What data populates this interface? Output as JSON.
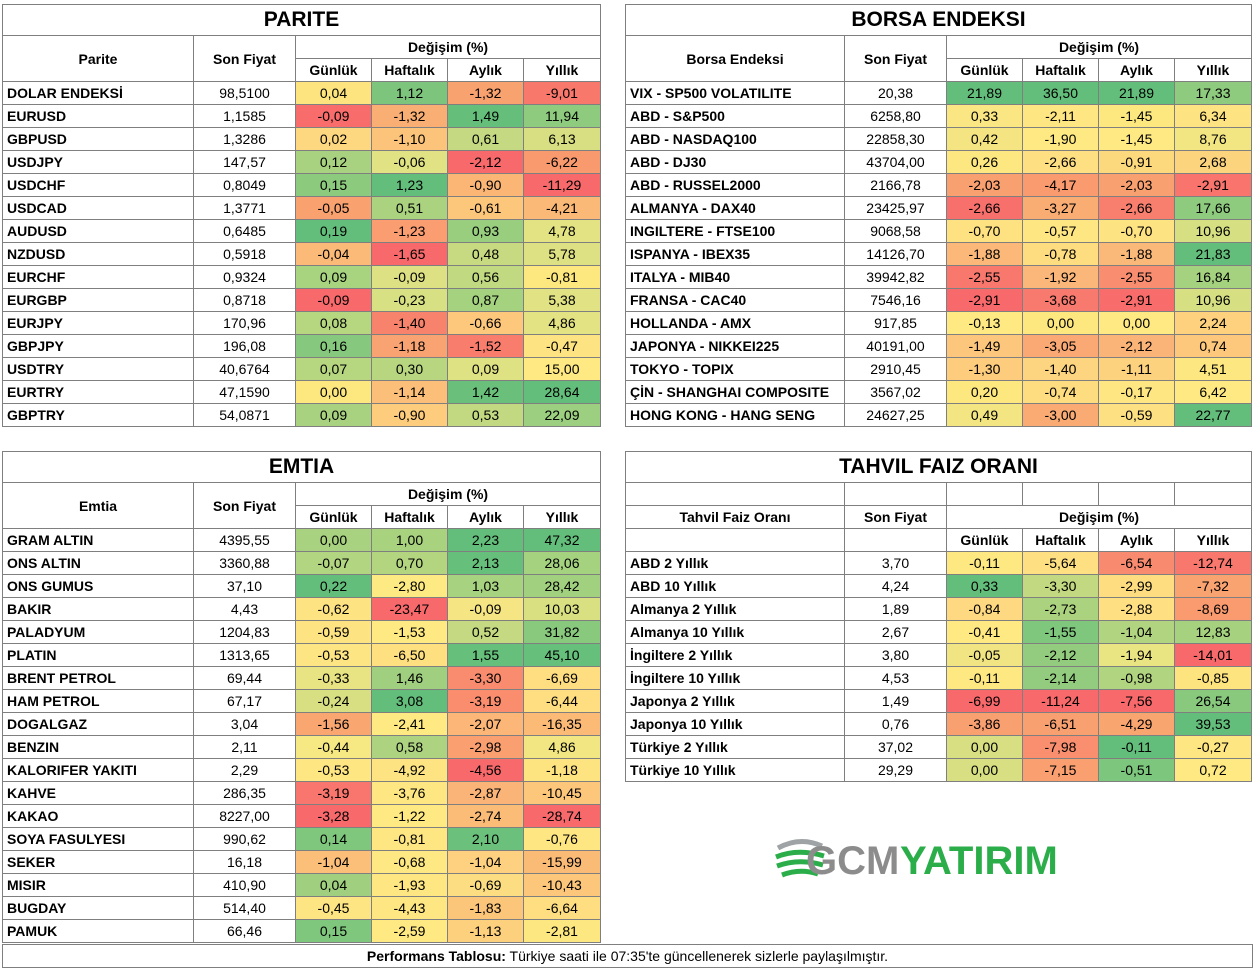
{
  "headers": {
    "son_fiyat": "Son Fiyat",
    "degisim": "Değişim (%)",
    "gunluk": "Günlük",
    "haftalik": "Haftalık",
    "aylik": "Aylık",
    "yillik": "Yıllık"
  },
  "parite": {
    "title": "PARITE",
    "col_label": "Parite",
    "rows": [
      {
        "name": "DOLAR ENDEKSİ",
        "price": "98,5100",
        "d": "0,04",
        "w": "1,12",
        "m": "-1,32",
        "y": "-9,01",
        "c": [
          "#fde47e",
          "#7dc57c",
          "#f8a270",
          "#f8786c"
        ]
      },
      {
        "name": "EURUSD",
        "price": "1,1585",
        "d": "-0,09",
        "w": "-1,32",
        "m": "1,49",
        "y": "11,94",
        "c": [
          "#f86d6b",
          "#f9ae73",
          "#66be7b",
          "#8fcb7e"
        ]
      },
      {
        "name": "GBPUSD",
        "price": "1,3286",
        "d": "0,02",
        "w": "-1,10",
        "m": "0,61",
        "y": "6,13",
        "c": [
          "#fed880",
          "#fbc47a",
          "#c4d981",
          "#d8df82"
        ]
      },
      {
        "name": "USDJPY",
        "price": "147,57",
        "d": "0,12",
        "w": "-0,06",
        "m": "-2,12",
        "y": "-6,22",
        "c": [
          "#a8d27f",
          "#e0e283",
          "#f8696b",
          "#f89a6e"
        ]
      },
      {
        "name": "USDCHF",
        "price": "0,8049",
        "d": "0,15",
        "w": "1,23",
        "m": "-0,90",
        "y": "-11,29",
        "c": [
          "#8ccb7e",
          "#63be7b",
          "#fbb575",
          "#f8696b"
        ]
      },
      {
        "name": "USDCAD",
        "price": "1,3771",
        "d": "-0,05",
        "w": "0,51",
        "m": "-0,61",
        "y": "-4,21",
        "c": [
          "#f9a26f",
          "#aad27f",
          "#fcc67b",
          "#fbb977"
        ]
      },
      {
        "name": "AUDUSD",
        "price": "0,6485",
        "d": "0,19",
        "w": "-1,23",
        "m": "0,93",
        "y": "4,78",
        "c": [
          "#63be7b",
          "#fa9d71",
          "#99ce7f",
          "#e4e383"
        ]
      },
      {
        "name": "NZDUSD",
        "price": "0,5918",
        "d": "-0,04",
        "w": "-1,65",
        "m": "0,48",
        "y": "5,78",
        "c": [
          "#fbba77",
          "#f8696b",
          "#c8da81",
          "#dde183"
        ]
      },
      {
        "name": "EURCHF",
        "price": "0,9324",
        "d": "0,09",
        "w": "-0,09",
        "m": "0,56",
        "y": "-0,81",
        "c": [
          "#a8d37f",
          "#dde183",
          "#c1d981",
          "#fde880"
        ]
      },
      {
        "name": "EURGBP",
        "price": "0,8718",
        "d": "-0,09",
        "w": "-0,23",
        "m": "0,87",
        "y": "5,38",
        "c": [
          "#f8696b",
          "#d7e082",
          "#a4d27f",
          "#e0e283"
        ]
      },
      {
        "name": "EURJPY",
        "price": "170,96",
        "d": "0,08",
        "w": "-1,40",
        "m": "-0,66",
        "y": "4,86",
        "c": [
          "#b6d680",
          "#f8836d",
          "#fdc77c",
          "#e4e383"
        ]
      },
      {
        "name": "GBPJPY",
        "price": "196,08",
        "d": "0,16",
        "w": "-1,18",
        "m": "-1,52",
        "y": "-0,47",
        "c": [
          "#86c97e",
          "#faa372",
          "#f87d6d",
          "#fee382"
        ]
      },
      {
        "name": "USDTRY",
        "price": "40,6764",
        "d": "0,07",
        "w": "0,30",
        "m": "0,09",
        "y": "15,00",
        "c": [
          "#b6d680",
          "#b8d680",
          "#dfe283",
          "#fee983"
        ]
      },
      {
        "name": "EURTRY",
        "price": "47,1590",
        "d": "0,00",
        "w": "-1,14",
        "m": "1,42",
        "y": "28,64",
        "c": [
          "#fde880",
          "#fbbf79",
          "#6ac07b",
          "#63be7b"
        ]
      },
      {
        "name": "GBPTRY",
        "price": "54,0871",
        "d": "0,09",
        "w": "-0,90",
        "m": "0,53",
        "y": "22,09",
        "c": [
          "#a8d27f",
          "#fdcc7d",
          "#c2d981",
          "#9ccf7f"
        ]
      }
    ]
  },
  "borsa": {
    "title": "BORSA ENDEKSI",
    "col_label": "Borsa Endeksi",
    "rows": [
      {
        "name": "VIX  - SP500 VOLATILITE",
        "price": "20,38",
        "d": "21,89",
        "w": "36,50",
        "m": "21,89",
        "y": "17,33",
        "c": [
          "#63be7b",
          "#63be7b",
          "#63be7b",
          "#8fcb7e"
        ]
      },
      {
        "name": "ABD - S&P500",
        "price": "6258,80",
        "d": "0,33",
        "w": "-2,11",
        "m": "-1,45",
        "y": "6,34",
        "c": [
          "#fae683",
          "#fee682",
          "#fde880",
          "#fde382"
        ]
      },
      {
        "name": "ABD - NASDAQ100",
        "price": "22858,30",
        "d": "0,42",
        "w": "-1,90",
        "m": "-1,45",
        "y": "8,76",
        "c": [
          "#f5e582",
          "#fee983",
          "#fee983",
          "#f1e682"
        ]
      },
      {
        "name": "ABD - DJ30",
        "price": "43704,00",
        "d": "0,26",
        "w": "-2,66",
        "m": "-0,91",
        "y": "2,68",
        "c": [
          "#fde780",
          "#fee083",
          "#fdd97e",
          "#fdd47e"
        ]
      },
      {
        "name": "ABD - RUSSEL2000",
        "price": "2166,78",
        "d": "-2,03",
        "w": "-4,17",
        "m": "-2,03",
        "y": "-2,91",
        "c": [
          "#f9a070",
          "#f99a6f",
          "#f9a070",
          "#f8746d"
        ]
      },
      {
        "name": "ALMANYA - DAX40",
        "price": "23425,97",
        "d": "-2,66",
        "w": "-3,27",
        "m": "-2,66",
        "y": "17,66",
        "c": [
          "#f8706c",
          "#f9ad73",
          "#f87f6e",
          "#8fcb7e"
        ]
      },
      {
        "name": "INGILTERE - FTSE100",
        "price": "9068,58",
        "d": "-0,70",
        "w": "-0,57",
        "m": "-0,70",
        "y": "10,96",
        "c": [
          "#fee282",
          "#fee783",
          "#fee382",
          "#d6df82"
        ]
      },
      {
        "name": "ISPANYA - IBEX35",
        "price": "14126,70",
        "d": "-1,88",
        "w": "-0,78",
        "m": "-1,88",
        "y": "21,83",
        "c": [
          "#fbb878",
          "#fedd81",
          "#fbb979",
          "#63be7b"
        ]
      },
      {
        "name": "ITALYA - MIB40",
        "price": "39942,82",
        "d": "-2,55",
        "w": "-1,92",
        "m": "-2,55",
        "y": "16,84",
        "c": [
          "#f8786d",
          "#fbb679",
          "#f88d6f",
          "#a4d27f"
        ]
      },
      {
        "name": "FRANSA - CAC40",
        "price": "7546,16",
        "d": "-2,91",
        "w": "-3,68",
        "m": "-2,91",
        "y": "10,96",
        "c": [
          "#f8696b",
          "#f8796d",
          "#f86d6b",
          "#d6df82"
        ]
      },
      {
        "name": "HOLLANDA - AMX",
        "price": "917,85",
        "d": "-0,13",
        "w": "0,00",
        "m": "0,00",
        "y": "2,24",
        "c": [
          "#fee983",
          "#fde880",
          "#fee983",
          "#fdd17e"
        ]
      },
      {
        "name": "JAPONYA - NIKKEI225",
        "price": "40191,00",
        "d": "-1,49",
        "w": "-3,05",
        "m": "-2,12",
        "y": "0,74",
        "c": [
          "#fcc77c",
          "#faa974",
          "#fbb478",
          "#fdc87c"
        ]
      },
      {
        "name": "TOKYO - TOPIX",
        "price": "2910,45",
        "d": "-1,30",
        "w": "-1,40",
        "m": "-1,11",
        "y": "4,51",
        "c": [
          "#fdcc7d",
          "#fdd480",
          "#fdd27f",
          "#fde780"
        ]
      },
      {
        "name": "ÇİN - SHANGHAI COMPOSITE",
        "price": "3567,02",
        "d": "0,20",
        "w": "-0,74",
        "m": "-0,17",
        "y": "6,42",
        "c": [
          "#fde880",
          "#fedd81",
          "#fee783",
          "#fee983"
        ]
      },
      {
        "name": "HONG KONG - HANG SENG",
        "price": "24627,25",
        "d": "0,49",
        "w": "-3,00",
        "m": "-0,59",
        "y": "22,77",
        "c": [
          "#f2e582",
          "#f9ab73",
          "#fde081",
          "#63be7b"
        ]
      }
    ]
  },
  "emtia": {
    "title": "EMTIA",
    "col_label": "Emtia",
    "rows": [
      {
        "name": "GRAM ALTIN",
        "price": "4395,55",
        "d": "0,00",
        "w": "1,00",
        "m": "2,23",
        "y": "47,32",
        "c": [
          "#a8d27f",
          "#a9d27f",
          "#63be7b",
          "#63be7b"
        ]
      },
      {
        "name": "ONS ALTIN",
        "price": "3360,88",
        "d": "-0,07",
        "w": "0,70",
        "m": "2,13",
        "y": "28,06",
        "c": [
          "#b1d580",
          "#b3d580",
          "#66bf7b",
          "#a4d27f"
        ]
      },
      {
        "name": "ONS GUMUS",
        "price": "37,10",
        "d": "0,22",
        "w": "-2,80",
        "m": "1,03",
        "y": "28,42",
        "c": [
          "#63be7b",
          "#feea83",
          "#a7d27f",
          "#a1d07f"
        ]
      },
      {
        "name": "BAKIR",
        "price": "4,43",
        "d": "-0,62",
        "w": "-23,47",
        "m": "-0,09",
        "y": "10,03",
        "c": [
          "#fee382",
          "#f8696b",
          "#f5e583",
          "#d9e082"
        ]
      },
      {
        "name": "PALADYUM",
        "price": "1204,83",
        "d": "-0,59",
        "w": "-1,53",
        "m": "0,52",
        "y": "31,82",
        "c": [
          "#fee383",
          "#fee983",
          "#c4d981",
          "#88c97e"
        ]
      },
      {
        "name": "PLATIN",
        "price": "1313,65",
        "d": "-0,53",
        "w": "-6,50",
        "m": "1,55",
        "y": "45,10",
        "c": [
          "#fde583",
          "#fee081",
          "#66bf7b",
          "#66bf7b"
        ]
      },
      {
        "name": "BRENT PETROL",
        "price": "69,44",
        "d": "-0,33",
        "w": "1,46",
        "m": "-3,30",
        "y": "-6,69",
        "c": [
          "#e8e483",
          "#9fcf7f",
          "#f98c6e",
          "#fede81"
        ]
      },
      {
        "name": "HAM PETROL",
        "price": "67,17",
        "d": "-0,24",
        "w": "3,08",
        "m": "-3,19",
        "y": "-6,44",
        "c": [
          "#d7df82",
          "#63be7b",
          "#f98d6e",
          "#fede81"
        ]
      },
      {
        "name": "DOGALGAZ",
        "price": "3,04",
        "d": "-1,56",
        "w": "-2,41",
        "m": "-2,07",
        "y": "-16,35",
        "c": [
          "#f9a671",
          "#fee983",
          "#fbb678",
          "#fbbb77"
        ]
      },
      {
        "name": "BENZIN",
        "price": "2,11",
        "d": "-0,44",
        "w": "0,58",
        "m": "-2,98",
        "y": "4,86",
        "c": [
          "#f6e883",
          "#aed380",
          "#fa9f70",
          "#f2e682"
        ]
      },
      {
        "name": "KALORIFER YAKITI",
        "price": "2,29",
        "d": "-0,53",
        "w": "-4,92",
        "m": "-4,56",
        "y": "-1,18",
        "c": [
          "#fee783",
          "#fee383",
          "#f8696b",
          "#fee381"
        ]
      },
      {
        "name": "KAHVE",
        "price": "286,35",
        "d": "-3,19",
        "w": "-3,76",
        "m": "-2,87",
        "y": "-10,45",
        "c": [
          "#f8766d",
          "#fee783",
          "#fab477",
          "#fcc67b"
        ]
      },
      {
        "name": "KAKAO",
        "price": "8227,00",
        "d": "-3,28",
        "w": "-1,22",
        "m": "-2,74",
        "y": "-28,74",
        "c": [
          "#f8696b",
          "#fee983",
          "#fbbc78",
          "#f8696b"
        ]
      },
      {
        "name": "SOYA FASULYESI",
        "price": "990,62",
        "d": "0,14",
        "w": "-0,81",
        "m": "2,10",
        "y": "-0,76",
        "c": [
          "#7fc77d",
          "#fee683",
          "#6bc17c",
          "#fee783"
        ]
      },
      {
        "name": "SEKER",
        "price": "16,18",
        "d": "-1,04",
        "w": "-0,68",
        "m": "-1,04",
        "y": "-15,99",
        "c": [
          "#fbbf79",
          "#fee883",
          "#fdd17f",
          "#fabb77"
        ]
      },
      {
        "name": "MISIR",
        "price": "410,90",
        "d": "0,04",
        "w": "-1,93",
        "m": "-0,69",
        "y": "-10,43",
        "c": [
          "#9fcf7f",
          "#fee683",
          "#fcdd81",
          "#fcc67b"
        ]
      },
      {
        "name": "BUGDAY",
        "price": "514,40",
        "d": "-0,45",
        "w": "-4,43",
        "m": "-1,83",
        "y": "-6,64",
        "c": [
          "#fde583",
          "#fee683",
          "#fbc57a",
          "#fede81"
        ]
      },
      {
        "name": "PAMUK",
        "price": "66,46",
        "d": "0,15",
        "w": "-2,59",
        "m": "-1,13",
        "y": "-2,81",
        "c": [
          "#7fc77d",
          "#fee983",
          "#fdd07e",
          "#fde781"
        ]
      }
    ]
  },
  "tahvil": {
    "title": "TAHVIL FAIZ ORANI",
    "col_label": "Tahvil Faiz Oranı",
    "rows": [
      {
        "name": "ABD 2 Yıllık",
        "price": "3,70",
        "d": "-0,11",
        "w": "-5,64",
        "m": "-6,54",
        "y": "-12,74",
        "c": [
          "#fde881",
          "#fee082",
          "#f88b6f",
          "#f8786d"
        ]
      },
      {
        "name": "ABD 10 Yıllık",
        "price": "4,24",
        "d": "0,33",
        "w": "-3,30",
        "m": "-2,99",
        "y": "-7,32",
        "c": [
          "#63be7b",
          "#c2d981",
          "#fddd80",
          "#f9a470"
        ]
      },
      {
        "name": "Almanya 2 Yıllık",
        "price": "1,89",
        "d": "-0,84",
        "w": "-2,73",
        "m": "-2,88",
        "y": "-8,69",
        "c": [
          "#fed981",
          "#abd27f",
          "#fee082",
          "#f99a6f"
        ]
      },
      {
        "name": "Almanya 10 Yıllık",
        "price": "2,67",
        "d": "-0,41",
        "w": "-1,55",
        "m": "-1,04",
        "y": "12,83",
        "c": [
          "#fee982",
          "#7ec77d",
          "#b1d480",
          "#a6d27f"
        ]
      },
      {
        "name": "İngiltere 2 Yıllık",
        "price": "3,80",
        "d": "-0,05",
        "w": "-2,12",
        "m": "-1,94",
        "y": "-14,01",
        "c": [
          "#f0e582",
          "#93cc7e",
          "#eae583",
          "#f8696b"
        ]
      },
      {
        "name": "İngiltere 10 Yıllık",
        "price": "4,53",
        "d": "-0,11",
        "w": "-2,14",
        "m": "-0,98",
        "y": "-0,85",
        "c": [
          "#fde881",
          "#93cc7e",
          "#b1d480",
          "#fde47f"
        ]
      },
      {
        "name": "Japonya 2 Yıllık",
        "price": "1,49",
        "d": "-6,99",
        "w": "-11,24",
        "m": "-7,56",
        "y": "26,54",
        "c": [
          "#f8696b",
          "#f8696b",
          "#f8696b",
          "#88c97e"
        ]
      },
      {
        "name": "Japonya 10 Yıllık",
        "price": "0,76",
        "d": "-3,86",
        "w": "-6,51",
        "m": "-4,29",
        "y": "39,53",
        "c": [
          "#f9a070",
          "#f8a070",
          "#f9a570",
          "#63be7b"
        ]
      },
      {
        "name": "Türkiye 2 Yıllık",
        "price": "37,02",
        "d": "0,00",
        "w": "-7,98",
        "m": "-0,11",
        "y": "-0,27",
        "c": [
          "#d8df82",
          "#f98f6f",
          "#63be7b",
          "#fee683"
        ]
      },
      {
        "name": "Türkiye 10 Yıllık",
        "price": "29,29",
        "d": "0,00",
        "w": "-7,15",
        "m": "-0,51",
        "y": "0,72",
        "c": [
          "#d8df82",
          "#fa9f70",
          "#7dc67d",
          "#fee983"
        ]
      }
    ]
  },
  "logo": {
    "prefix": "GCM",
    "suffix": "YATIRIM",
    "green": "#2bae4a",
    "gray": "#8c8c8c"
  },
  "footer": {
    "bold": "Performans Tablosu:",
    "text": " Türkiye saati ile 07:35'te güncellenerek sizlerle paylaşılmıştır."
  }
}
